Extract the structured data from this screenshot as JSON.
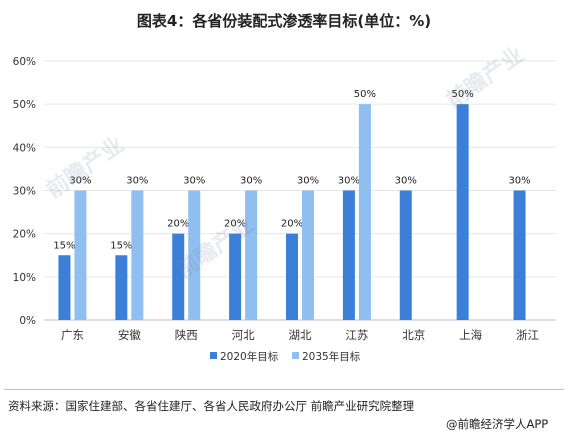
{
  "title": "图表4：各省份装配式渗透率目标(单位：%)",
  "source_text": "资料来源：国家住建部、各省住建厅、各省人民政府办公厅 前瞻产业研究院整理",
  "brand_text": "@前瞻经济学人APP",
  "watermark_text": "前瞻产业",
  "colors": {
    "series2020": "#3b7fd9",
    "series2035": "#8fbef0",
    "grid": "#e6e6e6",
    "axis": "#bfbfbf",
    "text": "#333333"
  },
  "chart_data": {
    "type": "bar",
    "categories": [
      "广东",
      "安徽",
      "陕西",
      "河北",
      "湖北",
      "江苏",
      "北京",
      "上海",
      "浙江"
    ],
    "series": [
      {
        "name": "2020年目标",
        "values": [
          15,
          15,
          20,
          20,
          20,
          30,
          30,
          50,
          30
        ],
        "labels": [
          "15%",
          "15%",
          "20%",
          "20%",
          "20%",
          "30%",
          "30%",
          "50%",
          "30%"
        ]
      },
      {
        "name": "2035年目标",
        "values": [
          30,
          30,
          30,
          30,
          30,
          50,
          null,
          null,
          null
        ],
        "labels": [
          "30%",
          "30%",
          "30%",
          "30%",
          "30%",
          "50%",
          null,
          null,
          null
        ]
      }
    ],
    "yticks": [
      "0%",
      "10%",
      "20%",
      "30%",
      "40%",
      "50%",
      "60%"
    ],
    "ylim": [
      0,
      60
    ],
    "grid": true,
    "legend_position": "bottom-center"
  }
}
